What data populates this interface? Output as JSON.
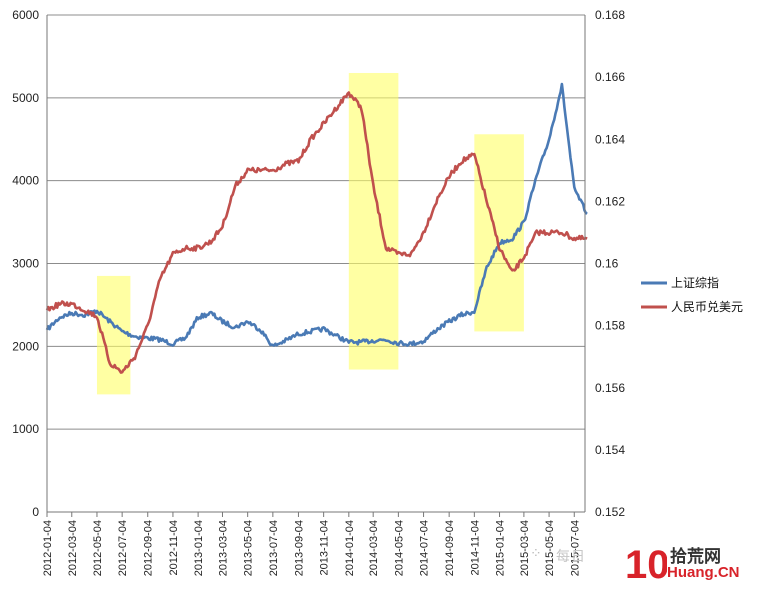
{
  "chart_data": {
    "type": "line",
    "title": "",
    "xlabel": "",
    "ylabel": "",
    "x_ticks": [
      "2012-01-04",
      "2012-03-04",
      "2012-05-04",
      "2012-07-04",
      "2012-09-04",
      "2012-11-04",
      "2013-01-04",
      "2013-03-04",
      "2013-05-04",
      "2013-07-04",
      "2013-09-04",
      "2013-11-04",
      "2014-01-04",
      "2014-03-04",
      "2014-05-04",
      "2014-07-04",
      "2014-09-04",
      "2014-11-04",
      "2015-01-04",
      "2015-03-04",
      "2015-05-04",
      "2015-07-04"
    ],
    "y_left": {
      "ticks": [
        "0",
        "1000",
        "2000",
        "3000",
        "4000",
        "5000",
        "6000"
      ],
      "range": [
        0,
        6000
      ]
    },
    "y_right": {
      "ticks": [
        "0.152",
        "0.154",
        "0.156",
        "0.158",
        "0.16",
        "0.162",
        "0.164",
        "0.166",
        "0.168"
      ],
      "range": [
        0.152,
        0.168
      ]
    },
    "grid": "horizontal",
    "legend": {
      "position": "right"
    },
    "series": [
      {
        "name": "上证综指",
        "axis": "left",
        "color": "#4a7ab5",
        "x": [
          "2012-01-04",
          "2012-02-04",
          "2012-03-04",
          "2012-04-04",
          "2012-05-04",
          "2012-06-04",
          "2012-07-04",
          "2012-08-04",
          "2012-09-04",
          "2012-10-04",
          "2012-11-04",
          "2012-12-04",
          "2013-01-04",
          "2013-02-04",
          "2013-03-04",
          "2013-04-04",
          "2013-05-04",
          "2013-06-04",
          "2013-07-04",
          "2013-08-04",
          "2013-09-04",
          "2013-10-04",
          "2013-11-04",
          "2013-12-04",
          "2014-01-04",
          "2014-02-04",
          "2014-03-04",
          "2014-04-04",
          "2014-05-04",
          "2014-06-04",
          "2014-07-04",
          "2014-08-04",
          "2014-09-04",
          "2014-10-04",
          "2014-11-04",
          "2014-12-04",
          "2015-01-04",
          "2015-02-04",
          "2015-03-04",
          "2015-04-04",
          "2015-05-04",
          "2015-06-04",
          "2015-07-04",
          "2015-08-04"
        ],
        "values": [
          2200,
          2350,
          2400,
          2380,
          2430,
          2300,
          2180,
          2120,
          2100,
          2080,
          2030,
          2100,
          2350,
          2400,
          2300,
          2230,
          2300,
          2200,
          2000,
          2070,
          2150,
          2180,
          2210,
          2130,
          2050,
          2050,
          2070,
          2080,
          2040,
          2030,
          2060,
          2200,
          2300,
          2380,
          2420,
          2950,
          3250,
          3300,
          3500,
          4050,
          4500,
          5150,
          3900,
          3600
        ]
      },
      {
        "name": "人民币兑美元",
        "axis": "right",
        "color": "#c0504d",
        "x": [
          "2012-01-04",
          "2012-02-04",
          "2012-03-04",
          "2012-04-04",
          "2012-05-04",
          "2012-06-04",
          "2012-07-04",
          "2012-08-04",
          "2012-09-04",
          "2012-10-04",
          "2012-11-04",
          "2012-12-04",
          "2013-01-04",
          "2013-02-04",
          "2013-03-04",
          "2013-04-04",
          "2013-05-04",
          "2013-06-04",
          "2013-07-04",
          "2013-08-04",
          "2013-09-04",
          "2013-10-04",
          "2013-11-04",
          "2013-12-04",
          "2014-01-04",
          "2014-02-04",
          "2014-03-04",
          "2014-04-04",
          "2014-05-04",
          "2014-06-04",
          "2014-07-04",
          "2014-08-04",
          "2014-09-04",
          "2014-10-04",
          "2014-11-04",
          "2014-12-04",
          "2015-01-04",
          "2015-02-04",
          "2015-03-04",
          "2015-04-04",
          "2015-05-04",
          "2015-06-04",
          "2015-07-04",
          "2015-08-04"
        ],
        "values": [
          0.1585,
          0.1587,
          0.1587,
          0.1585,
          0.1583,
          0.1568,
          0.1565,
          0.157,
          0.158,
          0.1595,
          0.1603,
          0.1605,
          0.1605,
          0.1607,
          0.1612,
          0.1625,
          0.163,
          0.163,
          0.163,
          0.1632,
          0.1633,
          0.164,
          0.1645,
          0.165,
          0.1655,
          0.165,
          0.1625,
          0.1605,
          0.1603,
          0.1603,
          0.161,
          0.162,
          0.1628,
          0.1633,
          0.1635,
          0.162,
          0.1605,
          0.1597,
          0.1602,
          0.161,
          0.161,
          0.161,
          0.1608,
          0.1608
        ]
      }
    ],
    "highlights": [
      {
        "from": "2012-05-04",
        "to": "2012-07-24",
        "top": 2850,
        "bottom": 1420,
        "color": "#ffff66"
      },
      {
        "from": "2014-01-04",
        "to": "2014-05-04",
        "top": 5300,
        "bottom": 1720,
        "color": "#ffff66"
      },
      {
        "from": "2014-11-04",
        "to": "2015-03-04",
        "top": 4560,
        "bottom": 2180,
        "color": "#ffff66"
      }
    ]
  },
  "watermark": {
    "faded_text": "每日",
    "logo_text": "10",
    "brand_text": "拾荒网",
    "site_text": "Huang.CN"
  }
}
